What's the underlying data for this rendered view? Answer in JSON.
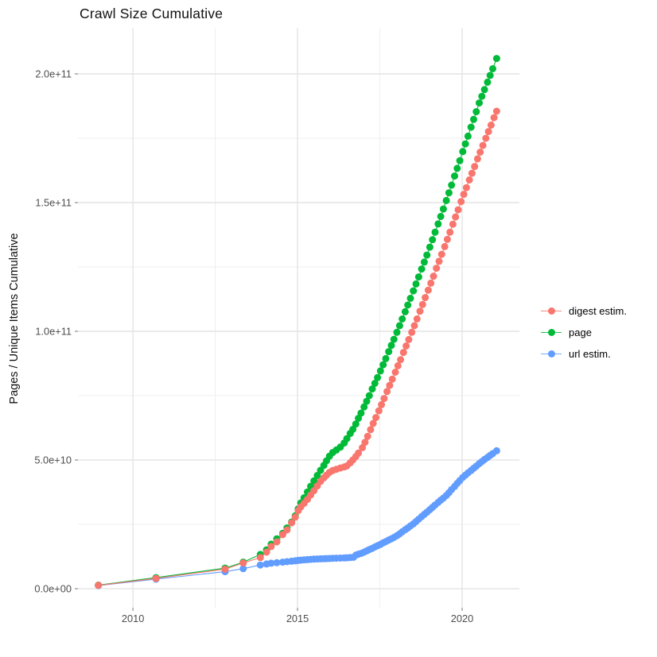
{
  "title": "Crawl Size Cumulative",
  "y_axis_label": "Pages / Unique Items Cumulative",
  "legend": {
    "position": "right",
    "items": [
      {
        "label": "digest estim.",
        "color": "#F8766D"
      },
      {
        "label": "page",
        "color": "#00BA38"
      },
      {
        "label": "url estim.",
        "color": "#619CFF"
      }
    ]
  },
  "chart_data": {
    "type": "scatter",
    "title": "Crawl Size Cumulative",
    "xlabel": "",
    "ylabel": "Pages / Unique Items Cumulative",
    "grid": true,
    "legend_position": "right",
    "x_domain": [
      2008.33,
      2021.74
    ],
    "y_domain_billions": [
      -7.4,
      217.9
    ],
    "x_ticks": [
      {
        "value": 2010,
        "label": "2010"
      },
      {
        "value": 2015,
        "label": "2015"
      },
      {
        "value": 2020,
        "label": "2020"
      }
    ],
    "x_minor_gridlines": [
      2012.5,
      2017.5
    ],
    "y_ticks": [
      {
        "value_billions": 0,
        "label": "0.0e+00"
      },
      {
        "value_billions": 50,
        "label": "5.0e+10"
      },
      {
        "value_billions": 100,
        "label": "1.0e+11"
      },
      {
        "value_billions": 150,
        "label": "1.5e+11"
      },
      {
        "value_billions": 200,
        "label": "2.0e+11"
      }
    ],
    "y_minor_gridlines_billions": [
      25,
      75,
      125,
      175
    ],
    "series": [
      {
        "name": "digest estim.",
        "color": "#F8766D",
        "points_year_billions": [
          [
            2008.95,
            1.3
          ],
          [
            2010.7,
            4.0
          ],
          [
            2012.8,
            7.6
          ],
          [
            2013.35,
            10.0
          ],
          [
            2013.87,
            12.1
          ],
          [
            2014.06,
            14.2
          ],
          [
            2014.2,
            16.4
          ],
          [
            2014.37,
            18.2
          ],
          [
            2014.55,
            21.0
          ],
          [
            2014.68,
            22.8
          ],
          [
            2014.82,
            25.6
          ],
          [
            2014.93,
            27.8
          ],
          [
            2015.02,
            30.3
          ],
          [
            2015.1,
            31.8
          ],
          [
            2015.2,
            33.2
          ],
          [
            2015.3,
            34.7
          ],
          [
            2015.4,
            36.4
          ],
          [
            2015.5,
            38.1
          ],
          [
            2015.6,
            39.9
          ],
          [
            2015.7,
            41.7
          ],
          [
            2015.8,
            43.1
          ],
          [
            2015.88,
            44.1
          ],
          [
            2015.97,
            45.2
          ],
          [
            2016.07,
            45.9
          ],
          [
            2016.18,
            46.4
          ],
          [
            2016.3,
            46.9
          ],
          [
            2016.42,
            47.3
          ],
          [
            2016.5,
            47.7
          ],
          [
            2016.6,
            48.9
          ],
          [
            2016.68,
            50.0
          ],
          [
            2016.77,
            51.3
          ],
          [
            2016.85,
            52.7
          ],
          [
            2016.97,
            54.8
          ],
          [
            2017.05,
            56.9
          ],
          [
            2017.13,
            59.2
          ],
          [
            2017.22,
            61.8
          ],
          [
            2017.3,
            64.2
          ],
          [
            2017.38,
            66.5
          ],
          [
            2017.47,
            69.1
          ],
          [
            2017.55,
            71.5
          ],
          [
            2017.63,
            73.9
          ],
          [
            2017.72,
            76.6
          ],
          [
            2017.8,
            79.0
          ],
          [
            2017.88,
            81.4
          ],
          [
            2017.97,
            84.1
          ],
          [
            2018.05,
            86.6
          ],
          [
            2018.13,
            89.0
          ],
          [
            2018.22,
            91.8
          ],
          [
            2018.3,
            94.3
          ],
          [
            2018.38,
            96.8
          ],
          [
            2018.47,
            99.6
          ],
          [
            2018.55,
            102.2
          ],
          [
            2018.63,
            104.8
          ],
          [
            2018.72,
            107.8
          ],
          [
            2018.8,
            110.4
          ],
          [
            2018.88,
            113.1
          ],
          [
            2018.97,
            116.0
          ],
          [
            2019.05,
            118.7
          ],
          [
            2019.13,
            121.4
          ],
          [
            2019.22,
            124.5
          ],
          [
            2019.3,
            127.2
          ],
          [
            2019.38,
            129.9
          ],
          [
            2019.47,
            132.9
          ],
          [
            2019.55,
            135.7
          ],
          [
            2019.63,
            138.5
          ],
          [
            2019.72,
            141.6
          ],
          [
            2019.8,
            144.4
          ],
          [
            2019.88,
            147.2
          ],
          [
            2019.97,
            150.4
          ],
          [
            2020.05,
            153.2
          ],
          [
            2020.13,
            155.8
          ],
          [
            2020.22,
            158.8
          ],
          [
            2020.3,
            161.4
          ],
          [
            2020.38,
            164.0
          ],
          [
            2020.47,
            167.0
          ],
          [
            2020.55,
            169.6
          ],
          [
            2020.63,
            172.2
          ],
          [
            2020.72,
            175.0
          ],
          [
            2020.8,
            177.6
          ],
          [
            2020.88,
            180.1
          ],
          [
            2020.97,
            183.0
          ],
          [
            2021.05,
            185.5
          ]
        ]
      },
      {
        "name": "page",
        "color": "#00BA38",
        "points_year_billions": [
          [
            2008.95,
            1.4
          ],
          [
            2010.7,
            4.3
          ],
          [
            2012.8,
            8.0
          ],
          [
            2013.35,
            10.3
          ],
          [
            2013.87,
            13.3
          ],
          [
            2014.06,
            15.1
          ],
          [
            2014.2,
            17.3
          ],
          [
            2014.37,
            19.4
          ],
          [
            2014.55,
            21.5
          ],
          [
            2014.68,
            23.6
          ],
          [
            2014.82,
            25.9
          ],
          [
            2014.93,
            28.3
          ],
          [
            2015.02,
            31.0
          ],
          [
            2015.1,
            33.3
          ],
          [
            2015.2,
            35.3
          ],
          [
            2015.3,
            37.6
          ],
          [
            2015.4,
            39.8
          ],
          [
            2015.5,
            41.9
          ],
          [
            2015.6,
            44.0
          ],
          [
            2015.7,
            46.0
          ],
          [
            2015.8,
            47.9
          ],
          [
            2015.88,
            49.7
          ],
          [
            2015.97,
            51.5
          ],
          [
            2016.07,
            52.9
          ],
          [
            2016.18,
            53.9
          ],
          [
            2016.3,
            55.0
          ],
          [
            2016.42,
            56.6
          ],
          [
            2016.5,
            58.3
          ],
          [
            2016.6,
            60.3
          ],
          [
            2016.68,
            61.9
          ],
          [
            2016.77,
            64.0
          ],
          [
            2016.85,
            66.2
          ],
          [
            2016.93,
            68.2
          ],
          [
            2017.02,
            70.6
          ],
          [
            2017.1,
            72.8
          ],
          [
            2017.18,
            75.0
          ],
          [
            2017.27,
            77.6
          ],
          [
            2017.35,
            79.8
          ],
          [
            2017.43,
            82.0
          ],
          [
            2017.52,
            84.6
          ],
          [
            2017.6,
            87.0
          ],
          [
            2017.68,
            89.4
          ],
          [
            2017.77,
            92.1
          ],
          [
            2017.85,
            94.5
          ],
          [
            2017.93,
            96.9
          ],
          [
            2018.02,
            99.6
          ],
          [
            2018.1,
            102.2
          ],
          [
            2018.18,
            104.8
          ],
          [
            2018.27,
            107.6
          ],
          [
            2018.35,
            110.2
          ],
          [
            2018.43,
            112.8
          ],
          [
            2018.52,
            115.7
          ],
          [
            2018.6,
            118.4
          ],
          [
            2018.68,
            121.1
          ],
          [
            2018.77,
            124.2
          ],
          [
            2018.85,
            126.9
          ],
          [
            2018.93,
            129.6
          ],
          [
            2019.02,
            132.7
          ],
          [
            2019.1,
            135.6
          ],
          [
            2019.18,
            138.5
          ],
          [
            2019.27,
            141.7
          ],
          [
            2019.35,
            144.6
          ],
          [
            2019.43,
            147.5
          ],
          [
            2019.52,
            150.8
          ],
          [
            2019.6,
            153.8
          ],
          [
            2019.68,
            156.8
          ],
          [
            2019.77,
            160.3
          ],
          [
            2019.85,
            163.3
          ],
          [
            2019.93,
            166.3
          ],
          [
            2020.02,
            169.8
          ],
          [
            2020.1,
            172.8
          ],
          [
            2020.18,
            175.8
          ],
          [
            2020.27,
            179.3
          ],
          [
            2020.35,
            182.3
          ],
          [
            2020.43,
            185.3
          ],
          [
            2020.52,
            188.7
          ],
          [
            2020.6,
            191.3
          ],
          [
            2020.68,
            193.9
          ],
          [
            2020.77,
            196.8
          ],
          [
            2020.85,
            199.4
          ],
          [
            2020.93,
            202.0
          ],
          [
            2021.05,
            206.0
          ]
        ]
      },
      {
        "name": "url estim.",
        "color": "#619CFF",
        "points_year_billions": [
          [
            2008.95,
            1.2
          ],
          [
            2010.7,
            3.7
          ],
          [
            2012.8,
            6.6
          ],
          [
            2013.35,
            7.8
          ],
          [
            2013.87,
            9.2
          ],
          [
            2014.06,
            9.6
          ],
          [
            2014.2,
            9.9
          ],
          [
            2014.37,
            10.1
          ],
          [
            2014.55,
            10.3
          ],
          [
            2014.68,
            10.5
          ],
          [
            2014.82,
            10.7
          ],
          [
            2014.93,
            10.85
          ],
          [
            2015.02,
            11.0
          ],
          [
            2015.1,
            11.1
          ],
          [
            2015.2,
            11.2
          ],
          [
            2015.3,
            11.3
          ],
          [
            2015.4,
            11.4
          ],
          [
            2015.5,
            11.5
          ],
          [
            2015.6,
            11.55
          ],
          [
            2015.7,
            11.6
          ],
          [
            2015.8,
            11.65
          ],
          [
            2015.88,
            11.7
          ],
          [
            2015.97,
            11.75
          ],
          [
            2016.07,
            11.8
          ],
          [
            2016.18,
            11.85
          ],
          [
            2016.3,
            11.9
          ],
          [
            2016.42,
            11.95
          ],
          [
            2016.5,
            12.0
          ],
          [
            2016.6,
            12.1
          ],
          [
            2016.7,
            12.2
          ],
          [
            2016.78,
            13.1
          ],
          [
            2016.85,
            13.4
          ],
          [
            2016.93,
            13.7
          ],
          [
            2017.02,
            14.2
          ],
          [
            2017.1,
            14.7
          ],
          [
            2017.18,
            15.2
          ],
          [
            2017.27,
            15.7
          ],
          [
            2017.35,
            16.2
          ],
          [
            2017.43,
            16.7
          ],
          [
            2017.52,
            17.2
          ],
          [
            2017.6,
            17.8
          ],
          [
            2017.68,
            18.3
          ],
          [
            2017.77,
            18.9
          ],
          [
            2017.85,
            19.4
          ],
          [
            2017.93,
            19.9
          ],
          [
            2018.02,
            20.6
          ],
          [
            2018.1,
            21.3
          ],
          [
            2018.18,
            22.1
          ],
          [
            2018.27,
            22.9
          ],
          [
            2018.35,
            23.6
          ],
          [
            2018.43,
            24.4
          ],
          [
            2018.52,
            25.2
          ],
          [
            2018.6,
            26.1
          ],
          [
            2018.68,
            27.0
          ],
          [
            2018.77,
            28.0
          ],
          [
            2018.85,
            28.9
          ],
          [
            2018.93,
            29.7
          ],
          [
            2019.02,
            30.7
          ],
          [
            2019.1,
            31.6
          ],
          [
            2019.18,
            32.5
          ],
          [
            2019.27,
            33.5
          ],
          [
            2019.35,
            34.4
          ],
          [
            2019.43,
            35.2
          ],
          [
            2019.52,
            36.2
          ],
          [
            2019.6,
            37.3
          ],
          [
            2019.68,
            38.5
          ],
          [
            2019.77,
            39.7
          ],
          [
            2019.85,
            40.9
          ],
          [
            2019.93,
            42.0
          ],
          [
            2020.02,
            43.2
          ],
          [
            2020.1,
            44.1
          ],
          [
            2020.18,
            45.0
          ],
          [
            2020.27,
            45.9
          ],
          [
            2020.35,
            46.8
          ],
          [
            2020.43,
            47.6
          ],
          [
            2020.52,
            48.6
          ],
          [
            2020.6,
            49.4
          ],
          [
            2020.68,
            50.2
          ],
          [
            2020.77,
            51.0
          ],
          [
            2020.85,
            51.8
          ],
          [
            2020.93,
            52.5
          ],
          [
            2021.05,
            53.6
          ]
        ]
      }
    ]
  }
}
